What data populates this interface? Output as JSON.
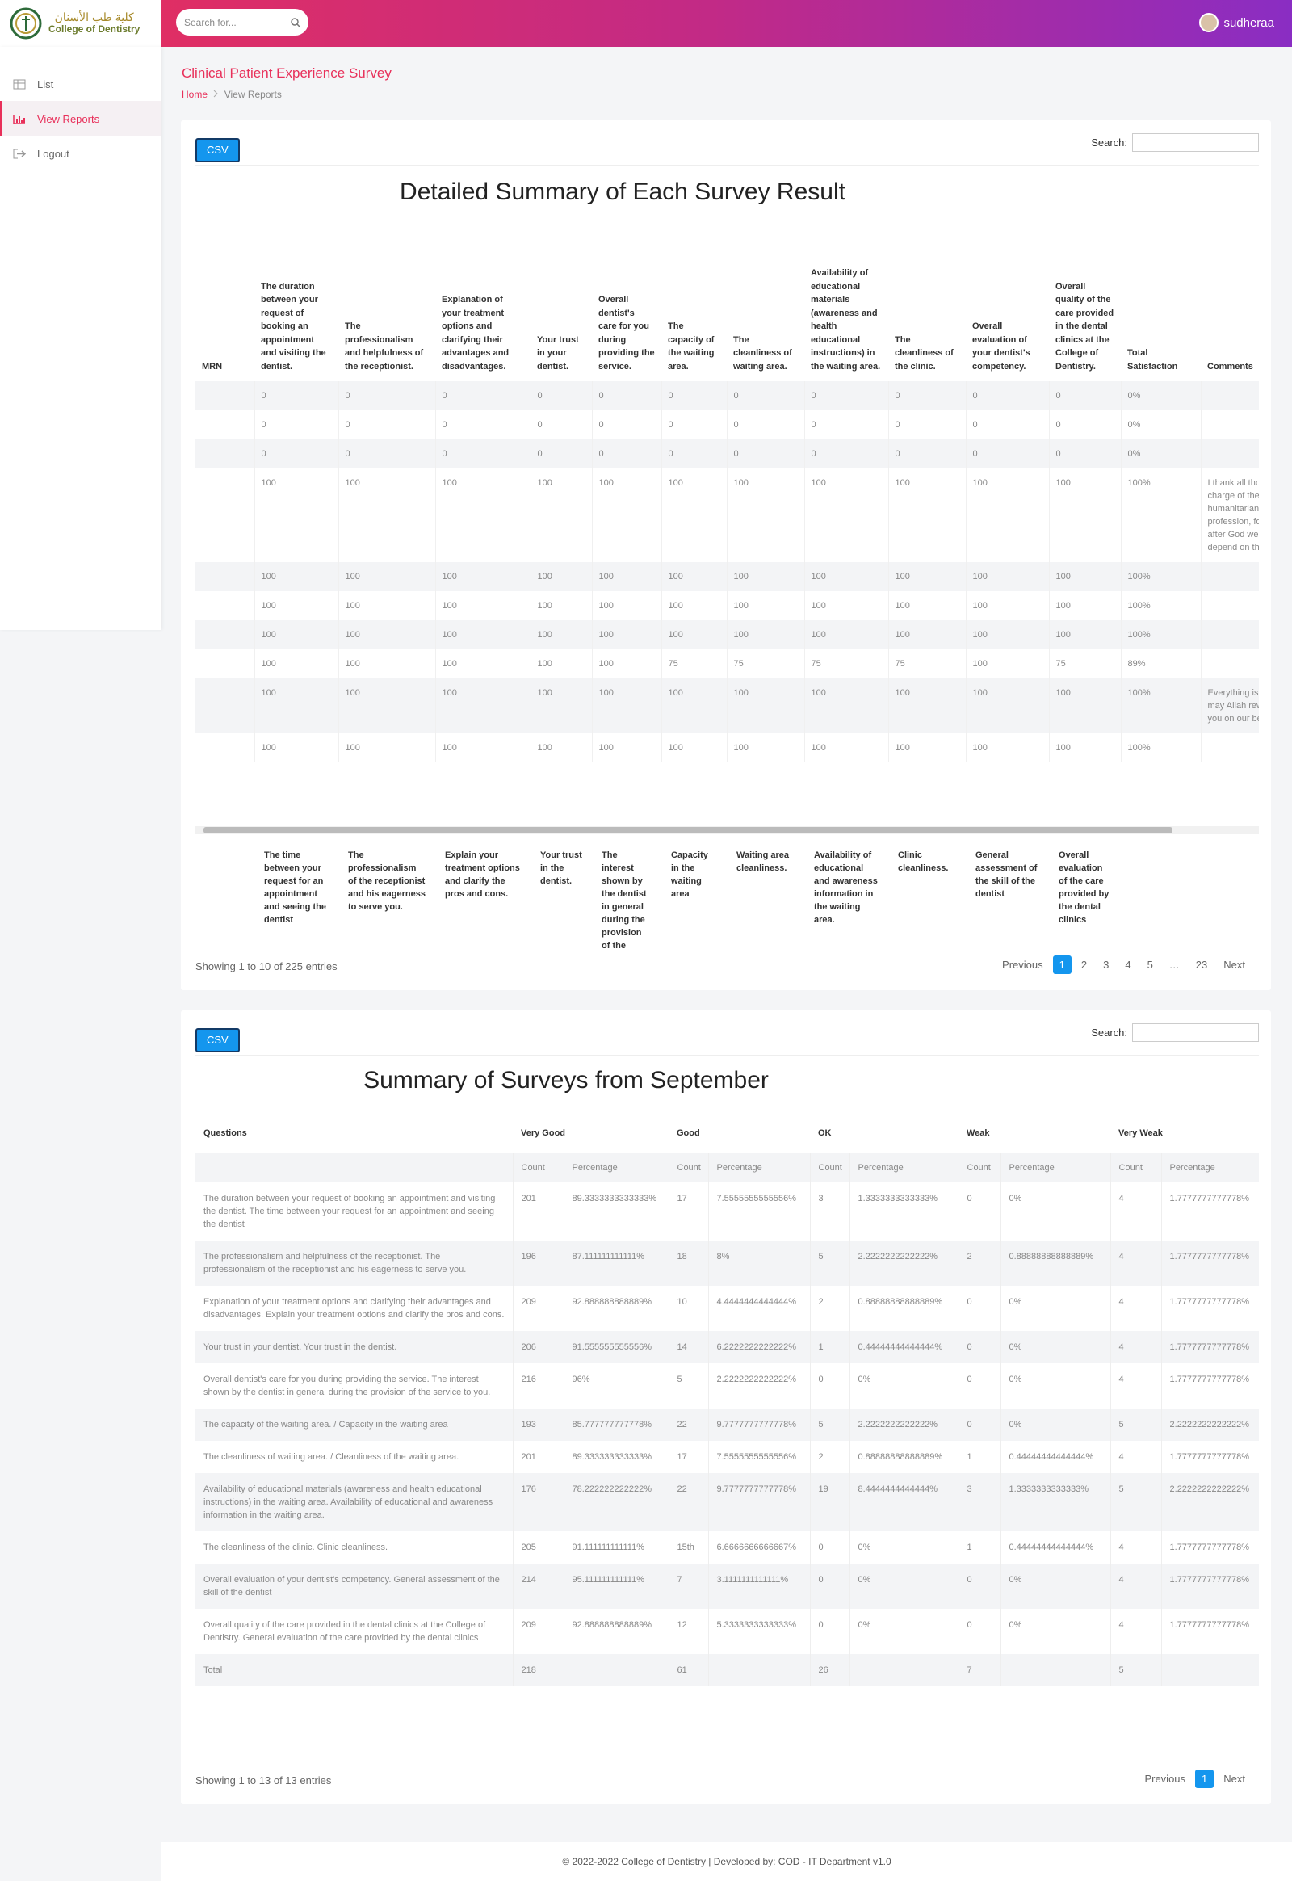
{
  "header": {
    "logo_arabic": "كلية طب الأسنان",
    "logo_english": "College of Dentistry",
    "search_placeholder": "Search for...",
    "user": "sudheraa"
  },
  "sidebar": {
    "items": [
      "List",
      "View Reports",
      "Logout"
    ]
  },
  "page": {
    "title": "Clinical Patient Experience Survey",
    "breadcrumb": [
      "Home",
      "View Reports"
    ]
  },
  "detail": {
    "csv": "CSV",
    "search_label": "Search:",
    "heading": "Detailed Summary of Each Survey Result",
    "columns": [
      "MRN",
      "The duration between your request of booking an appointment and visiting the dentist.",
      "The professionalism and helpfulness of the receptionist.",
      "Explanation of your treatment options and clarifying their advantages and disadvantages.",
      "Your trust in your dentist.",
      "Overall dentist's care for you during providing the service.",
      "The capacity of the waiting area.",
      "The cleanliness of waiting area.",
      "Availability of educational materials (awareness and health educational instructions) in the waiting area.",
      "The cleanliness of the clinic.",
      "Overall evaluation of your dentist's competency.",
      "Overall quality of the care provided in the dental clinics at the College of Dentistry.",
      "Total Satisfaction",
      "Comments"
    ],
    "rows": [
      {
        "values": [
          0,
          0,
          0,
          0,
          0,
          0,
          0,
          0,
          0,
          0,
          0
        ],
        "total": "0%"
      },
      {
        "values": [
          0,
          0,
          0,
          0,
          0,
          0,
          0,
          0,
          0,
          0,
          0
        ],
        "total": "0%"
      },
      {
        "values": [
          0,
          0,
          0,
          0,
          0,
          0,
          0,
          0,
          0,
          0,
          0
        ],
        "total": "0%"
      },
      {
        "values": [
          100,
          100,
          100,
          100,
          100,
          100,
          100,
          100,
          100,
          100,
          100
        ],
        "total": "100%",
        "comment": "I thank all those in charge of the humanitarian profession, for after God we depend on them"
      },
      {
        "values": [
          100,
          100,
          100,
          100,
          100,
          100,
          100,
          100,
          100,
          100,
          100
        ],
        "total": "100%"
      },
      {
        "values": [
          100,
          100,
          100,
          100,
          100,
          100,
          100,
          100,
          100,
          100,
          100
        ],
        "total": "100%"
      },
      {
        "values": [
          100,
          100,
          100,
          100,
          100,
          100,
          100,
          100,
          100,
          100,
          100
        ],
        "total": "100%"
      },
      {
        "values": [
          100,
          100,
          100,
          100,
          100,
          75,
          75,
          75,
          75,
          100,
          75
        ],
        "total": "89%"
      },
      {
        "values": [
          100,
          100,
          100,
          100,
          100,
          100,
          100,
          100,
          100,
          100,
          100
        ],
        "total": "100%",
        "comment": "Everything is fine, may Allah reward you on our behalf"
      },
      {
        "values": [
          100,
          100,
          100,
          100,
          100,
          100,
          100,
          100,
          100,
          100,
          100
        ],
        "total": "100%"
      }
    ],
    "translations": [
      "The time between your request for an appointment and seeing the dentist",
      "The professionalism of the receptionist and his eagerness to serve you.",
      "Explain your treatment options and clarify the pros and cons.",
      "Your trust in the dentist.",
      "The interest shown by the dentist in general during the provision of the service to you.",
      "Capacity in the waiting area",
      "Waiting area cleanliness.",
      "Availability of educational and awareness information in the waiting area.",
      "Clinic cleanliness.",
      "General assessment of the skill of the dentist",
      "Overall evaluation of the care provided by the dental clinics"
    ],
    "info": "Showing 1 to 10 of 225 entries",
    "pagination": [
      "Previous",
      "1",
      "2",
      "3",
      "4",
      "5",
      "…",
      "23",
      "Next"
    ]
  },
  "summary": {
    "csv": "CSV",
    "search_label": "Search:",
    "heading": "Summary of Surveys from September",
    "question_header": "Questions",
    "groups": [
      "Very Good",
      "Good",
      "OK",
      "Weak",
      "Very Weak"
    ],
    "subheaders": [
      "Count",
      "Percentage"
    ],
    "rows": [
      {
        "question": "The duration between your request of booking an appointment and visiting the dentist. The time between your request for an appointment and seeing the dentist",
        "cells": [
          201,
          "89.3333333333333%",
          17,
          "7.5555555555556%",
          3,
          "1.3333333333333%",
          0,
          "0%",
          4,
          "1.7777777777778%"
        ]
      },
      {
        "question": "The professionalism and helpfulness of the receptionist. The professionalism of the receptionist and his eagerness to serve you.",
        "cells": [
          196,
          "87.111111111111%",
          18,
          "8%",
          5,
          "2.2222222222222%",
          2,
          "0.88888888888889%",
          4,
          "1.7777777777778%"
        ]
      },
      {
        "question": "Explanation of your treatment options and clarifying their advantages and disadvantages. Explain your treatment options and clarify the pros and cons.",
        "cells": [
          209,
          "92.888888888889%",
          10,
          "4.4444444444444%",
          2,
          "0.88888888888889%",
          0,
          "0%",
          4,
          "1.7777777777778%"
        ]
      },
      {
        "question": "Your trust in your dentist. Your trust in the dentist.",
        "cells": [
          206,
          "91.555555555556%",
          14,
          "6.2222222222222%",
          1,
          "0.44444444444444%",
          0,
          "0%",
          4,
          "1.7777777777778%"
        ]
      },
      {
        "question": "Overall dentist's care for you during providing the service. The interest shown by the dentist in general during the provision of the service to you.",
        "cells": [
          216,
          "96%",
          5,
          "2.2222222222222%",
          0,
          "0%",
          0,
          "0%",
          4,
          "1.7777777777778%"
        ]
      },
      {
        "question": "The capacity of the waiting area. / Capacity in the waiting area",
        "cells": [
          193,
          "85.777777777778%",
          22,
          "9.7777777777778%",
          5,
          "2.2222222222222%",
          0,
          "0%",
          5,
          "2.2222222222222%"
        ]
      },
      {
        "question": "The cleanliness of waiting area. / Cleanliness of the waiting area.",
        "cells": [
          201,
          "89.333333333333%",
          17,
          "7.5555555555556%",
          2,
          "0.88888888888889%",
          1,
          "0.44444444444444%",
          4,
          "1.7777777777778%"
        ]
      },
      {
        "question": "Availability of educational materials (awareness and health educational instructions) in the waiting area. Availability of educational and awareness information in the waiting area.",
        "cells": [
          176,
          "78.222222222222%",
          22,
          "9.7777777777778%",
          19,
          "8.4444444444444%",
          3,
          "1.3333333333333%",
          5,
          "2.2222222222222%"
        ]
      },
      {
        "question": "The cleanliness of the clinic. Clinic cleanliness.",
        "cells": [
          205,
          "91.111111111111%",
          "15th",
          "6.6666666666667%",
          0,
          "0%",
          1,
          "0.44444444444444%",
          4,
          "1.7777777777778%"
        ]
      },
      {
        "question": "Overall evaluation of your dentist's competency. General assessment of the skill of the dentist",
        "cells": [
          214,
          "95.111111111111%",
          7,
          "3.1111111111111%",
          0,
          "0%",
          0,
          "0%",
          4,
          "1.7777777777778%"
        ]
      },
      {
        "question": "Overall quality of the care provided in the dental clinics at the College of Dentistry. General evaluation of the care provided by the dental clinics",
        "cells": [
          209,
          "92.888888888889%",
          12,
          "5.3333333333333%",
          0,
          "0%",
          0,
          "0%",
          4,
          "1.7777777777778%"
        ]
      }
    ],
    "total": {
      "label": "Total",
      "counts": [
        218,
        61,
        26,
        7,
        5
      ]
    },
    "info": "Showing 1 to 13 of 13 entries",
    "pagination": [
      "Previous",
      "1",
      "Next"
    ]
  },
  "footer": "© 2022-2022 College of Dentistry | Developed by: COD - IT Department v1.0"
}
